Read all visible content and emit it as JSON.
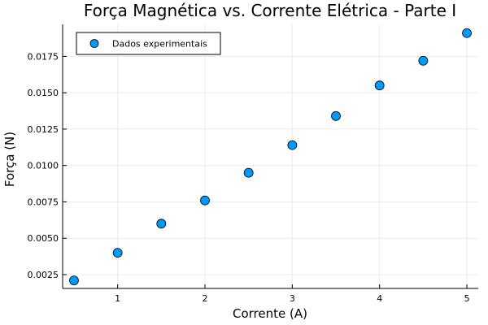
{
  "chart_data": {
    "type": "scatter",
    "title": "Força Magnética vs. Corrente Elétrica - Parte I",
    "xlabel": "Corrente (A)",
    "ylabel": "Força (N)",
    "xlim": [
      0.37,
      5.13
    ],
    "ylim": [
      0.00155,
      0.0197
    ],
    "xticks": [
      1,
      2,
      3,
      4,
      5
    ],
    "xtick_labels": [
      "1",
      "2",
      "3",
      "4",
      "5"
    ],
    "yticks": [
      0.0025,
      0.005,
      0.0075,
      0.01,
      0.0125,
      0.015,
      0.0175
    ],
    "ytick_labels": [
      "0.0025",
      "0.0050",
      "0.0075",
      "0.0100",
      "0.0125",
      "0.0150",
      "0.0175"
    ],
    "grid": true,
    "legend_position": "top-left",
    "series": [
      {
        "name": "Dados experimentais",
        "color": "#009AFA",
        "x": [
          0.5,
          1.0,
          1.5,
          2.0,
          2.5,
          3.0,
          3.5,
          4.0,
          4.5,
          5.0
        ],
        "y": [
          0.0021,
          0.004,
          0.006,
          0.0076,
          0.0095,
          0.0114,
          0.0134,
          0.0155,
          0.0172,
          0.0191
        ]
      }
    ]
  }
}
